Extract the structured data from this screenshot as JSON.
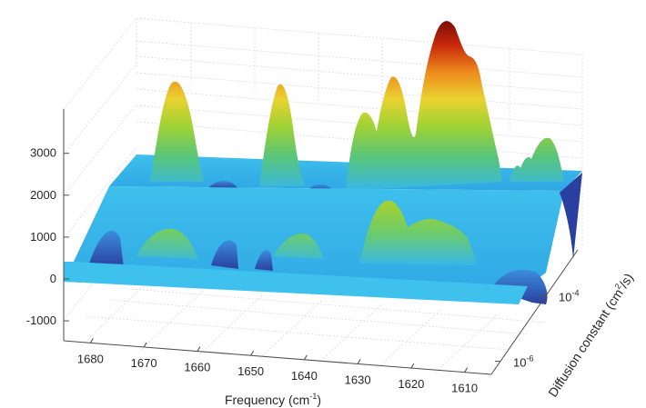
{
  "chart_data": {
    "type": "surface",
    "title": "",
    "xlabel": "Frequency (cm",
    "xlabel_sup": "-1",
    "xlabel_close": ")",
    "ylabel": "Diffusion constant (cm",
    "ylabel_sup": "2",
    "ylabel_close": "/s)",
    "zlabel": "",
    "x_ticks": [
      "1680",
      "1670",
      "1660",
      "1650",
      "1640",
      "1630",
      "1620",
      "1610"
    ],
    "x_tick_values": [
      1680,
      1670,
      1660,
      1650,
      1640,
      1630,
      1620,
      1610
    ],
    "xlim": [
      1685,
      1605
    ],
    "y_scale": "log",
    "y_ticks": [
      {
        "base": "10",
        "exp": "-6"
      },
      {
        "base": "10",
        "exp": "-4"
      }
    ],
    "y_tick_values": [
      1e-06,
      0.0001
    ],
    "z_ticks": [
      "-1000",
      "0",
      "1000",
      "2000",
      "3000"
    ],
    "z_tick_values": [
      -1000,
      0,
      1000,
      2000,
      3000
    ],
    "zlim": [
      -1300,
      4000
    ],
    "grid": true,
    "colormap": "parula-jet",
    "colors": {
      "low": "#2a4aa8",
      "mid": "#38b7e8",
      "green": "#9fd234",
      "yellow": "#f0c020",
      "high": "#b31a08"
    },
    "ridges": [
      {
        "name": "back ridge",
        "diffusion_constant": 0.0001,
        "baseline": 2000,
        "peaks": [
          {
            "frequency": 1674,
            "height": 3700
          },
          {
            "frequency": 1653,
            "height": 3600
          },
          {
            "frequency": 1634,
            "height": 3000
          },
          {
            "frequency": 1628,
            "height": 3600
          },
          {
            "frequency": 1619,
            "height": 4500
          },
          {
            "frequency": 1611,
            "height": 2600
          },
          {
            "frequency": 1606,
            "height": 2800
          }
        ]
      },
      {
        "name": "front ridge",
        "diffusion_constant": 1e-06,
        "baseline": 0,
        "peaks": [
          {
            "frequency": 1673,
            "height": 900
          },
          {
            "frequency": 1652,
            "height": 700
          },
          {
            "frequency": 1633,
            "height": 1800
          },
          {
            "frequency": 1622,
            "height": 1400
          }
        ]
      }
    ]
  }
}
